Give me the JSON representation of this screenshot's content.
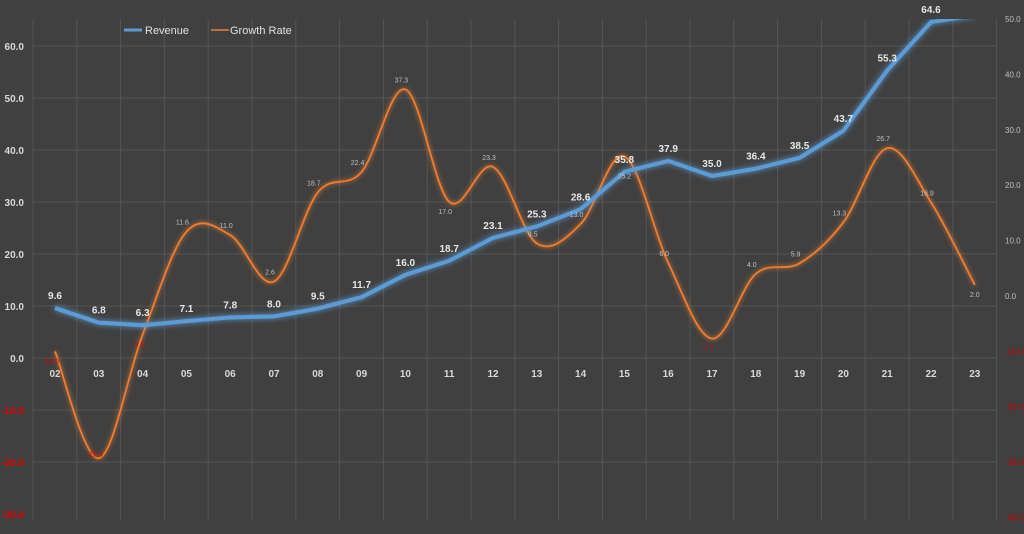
{
  "chart_data": {
    "type": "line",
    "title": "",
    "categories": [
      "02",
      "03",
      "04",
      "05",
      "06",
      "07",
      "08",
      "09",
      "10",
      "11",
      "12",
      "13",
      "14",
      "15",
      "16",
      "17",
      "18",
      "19",
      "20",
      "21",
      "22",
      "23"
    ],
    "series": [
      {
        "name": "Revenue",
        "axis": "left",
        "color": "#5b9bd5",
        "values": [
          9.6,
          6.8,
          6.3,
          7.1,
          7.8,
          8.0,
          9.5,
          11.7,
          16.0,
          18.7,
          23.1,
          25.3,
          28.6,
          35.8,
          37.9,
          35.0,
          36.4,
          38.5,
          43.7,
          55.3,
          64.6,
          65.9
        ],
        "labels": [
          "9.6",
          "6.8",
          "6.3",
          "7.1",
          "7.8",
          "8.0",
          "9.5",
          "11.7",
          "16.0",
          "18.7",
          "23.1",
          "25.3",
          "28.6",
          "35.8",
          "37.9",
          "35.0",
          "36.4",
          "38.5",
          "43.7",
          "55.3",
          "64.6",
          ""
        ]
      },
      {
        "name": "Growth Rate",
        "axis": "right",
        "color": "#ed7d31",
        "smooth": true,
        "values": [
          -10.0,
          -29.3,
          -7.0,
          11.6,
          11.0,
          2.6,
          18.7,
          22.4,
          37.3,
          17.0,
          23.3,
          9.5,
          13.0,
          25.2,
          6.0,
          -7.7,
          4.0,
          5.9,
          13.3,
          26.7,
          16.9,
          2.0
        ],
        "labels": [
          "-10.0",
          "-29.3",
          "-7.0",
          "11.6",
          "11.0",
          "2.6",
          "18.7",
          "22.4",
          "37.3",
          "17.0",
          "23.3",
          "9.5",
          "13.0",
          "25.2",
          "6.0",
          "-7.7",
          "4.0",
          "5.9",
          "13.3",
          "26.7",
          "16.9",
          "2.0"
        ]
      }
    ],
    "y_left": {
      "ylim": [
        -30,
        66
      ],
      "ticks": [
        "60.0",
        "50.0",
        "40.0",
        "30.0",
        "20.0",
        "10.0",
        "0.0",
        "-10.0",
        "-20.0",
        "-30.0"
      ],
      "negative_color": "#e00000"
    },
    "y_right": {
      "ylim": [
        -40,
        50
      ],
      "ticks": [
        "50.0",
        "40.0",
        "30.0",
        "20.0",
        "10.0",
        "0.0",
        "-10.0",
        "-20.0",
        "-30.0",
        "-40.0"
      ],
      "negative_color": "#d00000"
    },
    "grid": true,
    "legend": {
      "placement": "top-left",
      "entries": [
        "Revenue",
        "Growth Rate"
      ]
    },
    "background": "#404040"
  }
}
